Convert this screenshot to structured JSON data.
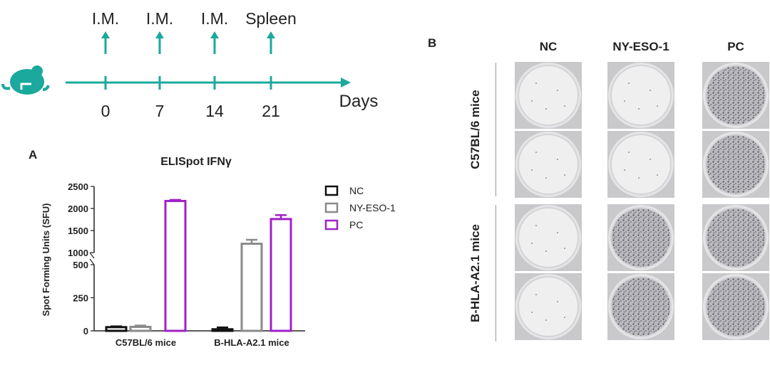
{
  "timeline": {
    "labels": [
      "I.M.",
      "I.M.",
      "I.M.",
      "Spleen"
    ],
    "days": [
      "0",
      "7",
      "14",
      "21"
    ],
    "axis_label": "Days",
    "color": "#1aa99c",
    "icon": "mouse-icon"
  },
  "panel_a": {
    "letter": "A",
    "title": "ELISpot IFNγ"
  },
  "panel_b": {
    "letter": "B",
    "columns": [
      "NC",
      "NY-ESO-1",
      "PC"
    ],
    "rows": [
      "C57BL/6 mice",
      "B-HLA-A2.1 mice"
    ],
    "wells": [
      [
        "clear",
        "clear",
        "dense"
      ],
      [
        "clear",
        "clear",
        "dense"
      ],
      [
        "clear",
        "dense",
        "dense"
      ],
      [
        "clear",
        "dense",
        "dense"
      ]
    ]
  },
  "chart_data": {
    "type": "bar",
    "title": "ELISpot IFNγ",
    "xlabel": "",
    "ylabel": "Spot Forming Units (SFU)",
    "categories": [
      "C57BL/6 mice",
      "B-HLA-A2.1 mice"
    ],
    "series": [
      {
        "name": "NC",
        "values": [
          28,
          12
        ],
        "errors": [
          6,
          14
        ],
        "color": "#111111"
      },
      {
        "name": "NY-ESO-1",
        "values": [
          30,
          1200
        ],
        "errors": [
          10,
          90
        ],
        "color": "#8a8a8a"
      },
      {
        "name": "PC",
        "values": [
          2170,
          1760
        ],
        "errors": [
          25,
          90
        ],
        "color": "#a020c8"
      }
    ],
    "axis_break": {
      "lower": [
        0,
        500
      ],
      "upper": [
        1000,
        2500
      ]
    },
    "lower_ticks": [
      0,
      250,
      500
    ],
    "upper_ticks": [
      1000,
      1500,
      2000,
      2500
    ],
    "legend_position": "right",
    "grid": false
  }
}
